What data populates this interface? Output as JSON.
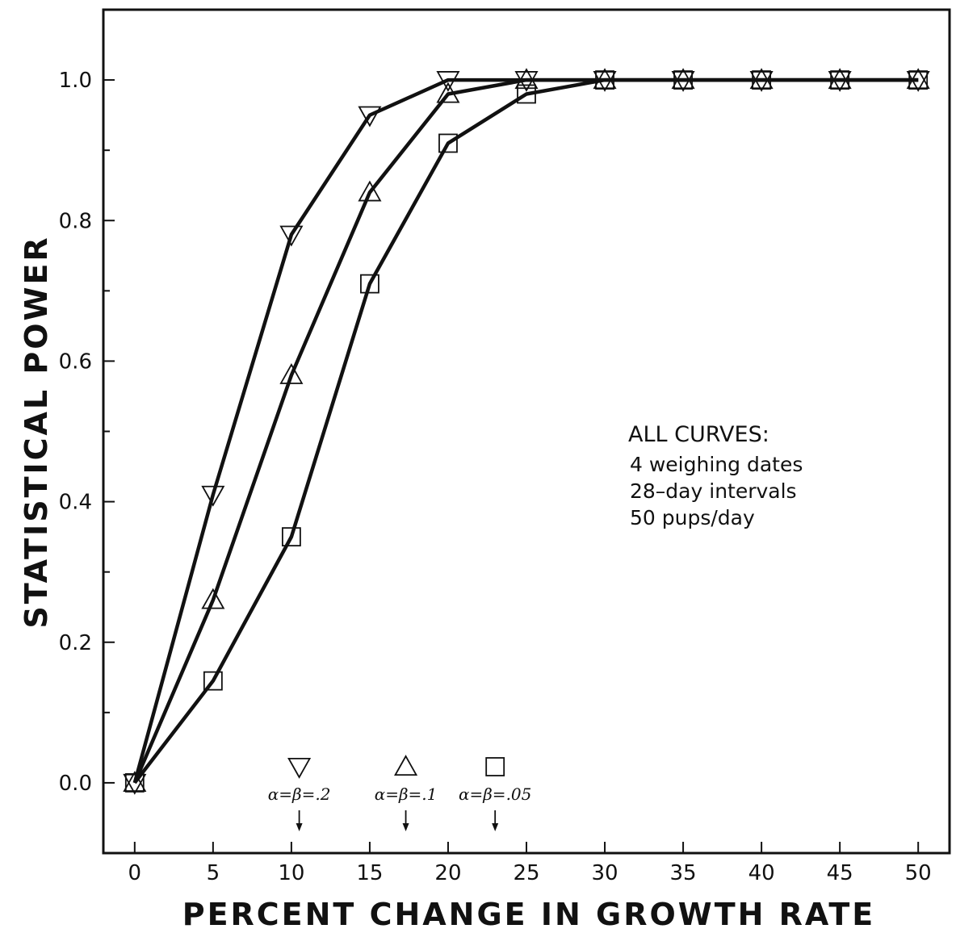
{
  "chart_data": {
    "type": "line",
    "xlabel": "PERCENT CHANGE IN GROWTH RATE",
    "ylabel": "STATISTICAL POWER",
    "xlim": [
      -2,
      52
    ],
    "ylim": [
      -0.1,
      1.1
    ],
    "x_ticks": [
      0,
      5,
      10,
      15,
      20,
      25,
      30,
      35,
      40,
      45,
      50
    ],
    "y_ticks": [
      0.0,
      0.2,
      0.4,
      0.6,
      0.8,
      1.0
    ],
    "x_tick_labels": [
      "0",
      "5",
      "10",
      "15",
      "20",
      "25",
      "30",
      "35",
      "40",
      "45",
      "50"
    ],
    "y_tick_labels": [
      "0.0",
      "0.2",
      "0.4",
      "0.6",
      "0.8",
      "1.0"
    ],
    "x": [
      0,
      5,
      10,
      15,
      20,
      25,
      30,
      35,
      40,
      45,
      50
    ],
    "series": [
      {
        "marker": "triangle-down",
        "values": [
          0.0,
          0.41,
          0.78,
          0.95,
          1.0,
          1.0,
          1.0,
          1.0,
          1.0,
          1.0,
          1.0
        ]
      },
      {
        "marker": "triangle-up",
        "values": [
          0.0,
          0.26,
          0.58,
          0.84,
          0.98,
          1.0,
          1.0,
          1.0,
          1.0,
          1.0,
          1.0
        ]
      },
      {
        "marker": "square",
        "values": [
          0.0,
          0.145,
          0.35,
          0.71,
          0.91,
          0.98,
          1.0,
          1.0,
          1.0,
          1.0,
          1.0
        ]
      }
    ],
    "annotation_box": {
      "heading": "ALL CURVES:",
      "lines": [
        "4 weighing dates",
        "28–day intervals",
        "50 pups/day"
      ]
    },
    "arrow_markers": [
      {
        "marker": "triangle-down",
        "label": "α=β=.2",
        "x": 10.5
      },
      {
        "marker": "triangle-up",
        "label": "α=β=.1",
        "x": 17.3
      },
      {
        "marker": "square",
        "label": "α=β=.05",
        "x": 23.0
      }
    ],
    "grid": false,
    "line_color": "#111111"
  }
}
